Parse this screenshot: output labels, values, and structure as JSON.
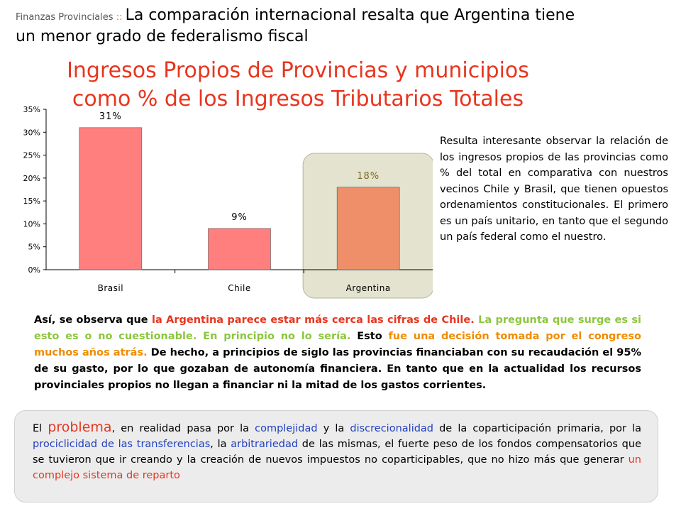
{
  "header": {
    "section_label": "Finanzas Provinciales",
    "section_sep": " :: ",
    "title_part1": "La comparación internacional resalta  que Argentina tiene",
    "title_part2": "un menor grado de federalismo fiscal"
  },
  "chart_title": {
    "line1": "Ingresos Propios de Provincias y municipios",
    "line2": "como % de los Ingresos Tributarios Totales"
  },
  "chart_data": {
    "type": "bar",
    "categories": [
      "Brasil",
      "Chile",
      "Argentina"
    ],
    "values": [
      31,
      9,
      18
    ],
    "value_labels": [
      "31%",
      "9%",
      "18%"
    ],
    "ylim": [
      0,
      35
    ],
    "yticks": [
      "0%",
      "5%",
      "10%",
      "15%",
      "20%",
      "25%",
      "30%",
      "35%"
    ],
    "highlight": "Argentina",
    "colors": {
      "bar": "#ff7f7f",
      "highlight_bar": "#ef8f6a",
      "highlight_box": "#e3e3cf",
      "highlight_label": "#7a6a2a"
    }
  },
  "side_text": "Resulta interesante observar la relación de los ingresos propios de las provincias como % del total en comparativa con nuestros vecinos Chile y Brasil, que tienen opuestos ordenamientos constitucionales. El primero es un país unitario, en tanto que el segundo un país federal como el nuestro.",
  "main_para": {
    "p1": "Así, se observa que ",
    "p2": "la Argentina parece estar más cerca las cifras de Chile.",
    "p3": " ",
    "p4": "La pregunta que surge es si esto es o no cuestionable. En principio no lo sería.",
    "p5": " Esto ",
    "p6": "fue una decisión tomada por el congreso muchos años atrás.",
    "p7": " De hecho, a principios de siglo las provincias financiaban con su recaudación el 95% de su gasto, por lo que gozaban de autonomía financiera. En tanto que en la actualidad los recursos provinciales propios no llegan a financiar ni la mitad de los gastos corrientes."
  },
  "bottom_para": {
    "b1": "El ",
    "b2": "problema",
    "b3": ", en realidad pasa por la ",
    "b4": "complejidad",
    "b5": " y la ",
    "b6": "discrecionalidad",
    "b7": " de la coparticipación primaria, por la ",
    "b8": "prociclicidad de las transferencias",
    "b9": ", la ",
    "b10": "arbitrariedad",
    "b11": " de las mismas, el fuerte peso de los fondos compensatorios que se tuvieron que ir creando y la creación de nuevos impuestos no coparticipables, que no hizo más que generar ",
    "b12": "un complejo sistema de reparto"
  }
}
